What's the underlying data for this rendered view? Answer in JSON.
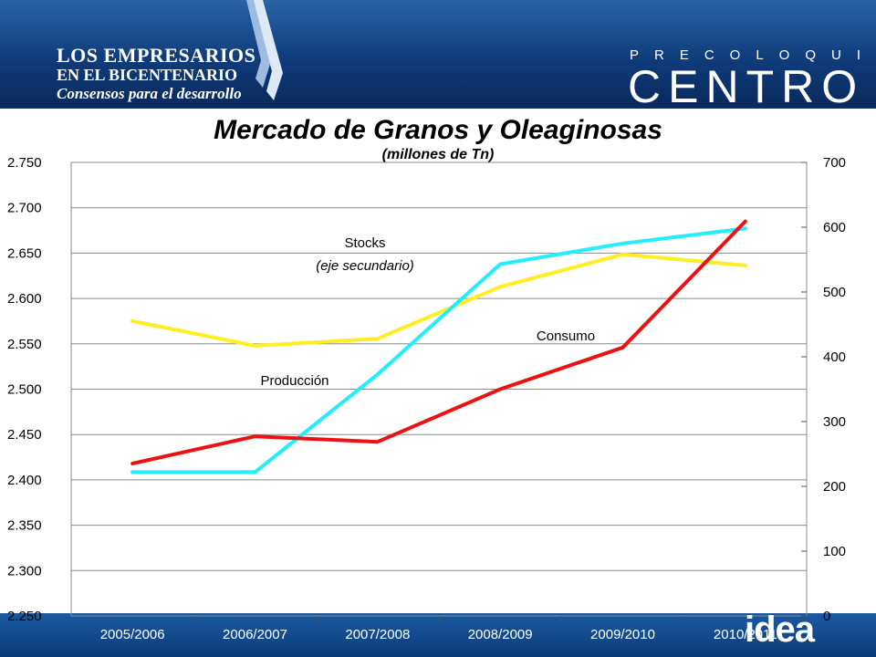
{
  "header": {
    "logo_line1": "LOS EMPRESARIOS",
    "logo_line2": "EN EL BICENTENARIO",
    "logo_line3": "Consensos para el desarrollo",
    "brand_small": "PRECOLOQUIO",
    "brand_large": "CENTRO"
  },
  "footer": {
    "brand": "idea"
  },
  "colors": {
    "header_blue": "#0f3c7a",
    "produccion": "#ee1111",
    "consumo": "#ffee22",
    "stocks": "#22eeff"
  },
  "chart_data": {
    "type": "line",
    "title": "Mercado de Granos y Oleaginosas",
    "subtitle": "(millones de Tn)",
    "categories": [
      "2005/2006",
      "2006/2007",
      "2007/2008",
      "2008/2009",
      "2009/2010",
      "2010/2011"
    ],
    "ylim": [
      2250,
      2750
    ],
    "y2lim": [
      0,
      700
    ],
    "yticks": [
      "2.250",
      "2.300",
      "2.350",
      "2.400",
      "2.450",
      "2.500",
      "2.550",
      "2.600",
      "2.650",
      "2.700",
      "2.750"
    ],
    "y2ticks": [
      "0",
      "100",
      "200",
      "300",
      "400",
      "500",
      "600",
      "700"
    ],
    "grid": true,
    "series": [
      {
        "name": "Producción",
        "axis": "primary",
        "color": "#ee1111",
        "values": [
          2418,
          2448,
          2442,
          2500,
          2546,
          2685
        ]
      },
      {
        "name": "Consumo",
        "axis": "secondary",
        "color": "#ffee22",
        "values": [
          455,
          417,
          428,
          508,
          558,
          541
        ]
      },
      {
        "name": "Stocks",
        "axis": "secondary",
        "color": "#22eeff",
        "values": [
          222,
          222,
          373,
          543,
          575,
          598
        ]
      }
    ],
    "annotations": [
      {
        "text": "Stocks",
        "series": "Stocks"
      },
      {
        "text": "(eje secundario)",
        "series": "Stocks"
      },
      {
        "text": "Consumo",
        "series": "Consumo"
      },
      {
        "text": "Producción",
        "series": "Producción"
      }
    ]
  }
}
